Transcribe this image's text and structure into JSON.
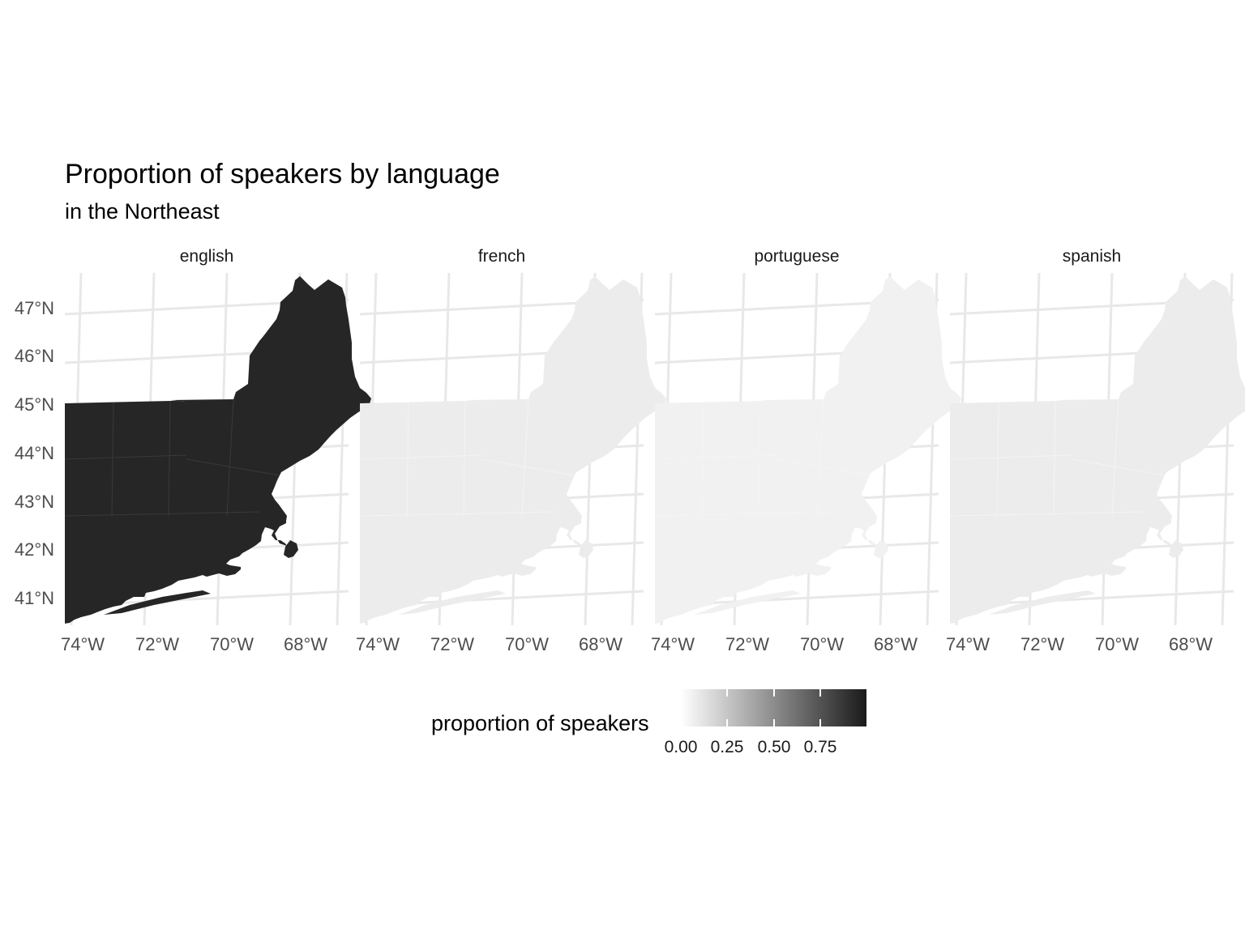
{
  "chart_data": {
    "type": "choropleth-map",
    "title": "Proportion of speakers by language",
    "subtitle": "in the Northeast",
    "facets": [
      {
        "name": "english",
        "typical_proportion": 0.85,
        "fill": "#262626"
      },
      {
        "name": "french",
        "typical_proportion": 0.05,
        "fill": "#ececec"
      },
      {
        "name": "portuguese",
        "typical_proportion": 0.02,
        "fill": "#f1f1f1"
      },
      {
        "name": "spanish",
        "typical_proportion": 0.05,
        "fill": "#ececec"
      }
    ],
    "x_ticks": [
      "74°W",
      "72°W",
      "70°W",
      "68°W"
    ],
    "y_ticks": [
      "47°N",
      "46°N",
      "45°N",
      "44°N",
      "43°N",
      "42°N",
      "41°N"
    ],
    "legend": {
      "title": "proportion of speakers",
      "ticks": [
        "0.00",
        "0.25",
        "0.50",
        "0.75"
      ],
      "low_color": "#ffffff",
      "high_color": "#1a1a1a",
      "placement": "bottom"
    },
    "grid": true
  }
}
